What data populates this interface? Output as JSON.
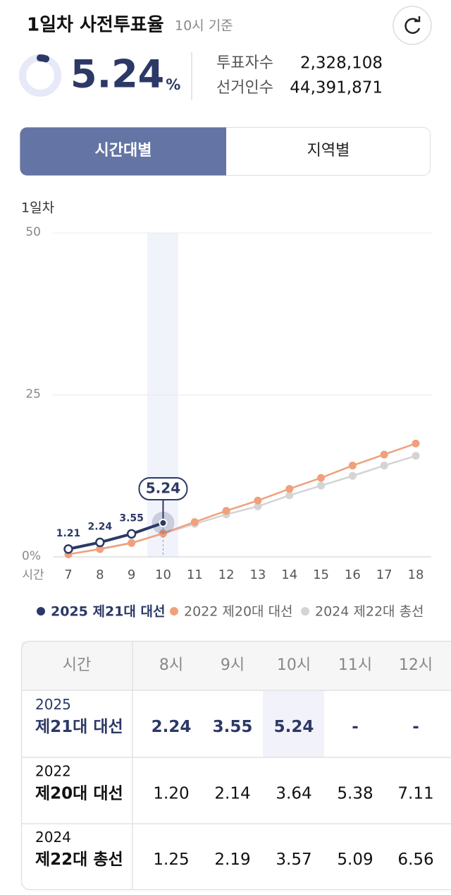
{
  "header": {
    "title": "1일차 사전투표율",
    "subtitle": "10시 기준"
  },
  "summary": {
    "rate": 5.24,
    "unit": "%",
    "stats": [
      {
        "label": "투표자수",
        "value": "2,328,108"
      },
      {
        "label": "선거인수",
        "value": "44,391,871"
      }
    ]
  },
  "tabs": [
    "시간대별",
    "지역별"
  ],
  "chart_data": {
    "type": "line",
    "title": "1일차",
    "x_label": "시간",
    "x": [
      7,
      8,
      9,
      10,
      11,
      12,
      13,
      14,
      15,
      16,
      17,
      18
    ],
    "xlim": [
      7,
      18
    ],
    "xticks": [
      7,
      8,
      9,
      10,
      11,
      12,
      13,
      14,
      15,
      16,
      17,
      18
    ],
    "ylim": [
      0,
      50
    ],
    "yticks": [
      {
        "value": 0,
        "label": "0%"
      },
      25,
      50
    ],
    "grid": true,
    "series": [
      {
        "name": "2025 제21대 대선",
        "color": "#2c3966",
        "values": [
          1.21,
          2.24,
          3.55,
          5.24,
          null,
          null,
          null,
          null,
          null,
          null,
          null,
          null
        ]
      },
      {
        "name": "2022 제20대 대선",
        "color": "#f0a07c",
        "values": [
          0.4,
          1.2,
          2.14,
          3.64,
          5.38,
          7.11,
          8.7,
          10.5,
          12.2,
          14.1,
          15.8,
          17.5
        ]
      },
      {
        "name": "2024 제22대 총선",
        "color": "#d4d4d4",
        "values": [
          0.4,
          1.25,
          2.19,
          3.57,
          5.09,
          6.56,
          7.8,
          9.5,
          11.0,
          12.5,
          14.1,
          15.6
        ]
      }
    ]
  },
  "table": {
    "columns": [
      "시간",
      "8시",
      "9시",
      "10시",
      "11시",
      "12시"
    ],
    "rows": [
      {
        "year": "2025",
        "name": "제21대 대선",
        "values": [
          "2.24",
          "3.55",
          "5.24",
          "-",
          "-"
        ]
      },
      {
        "year": "2022",
        "name": "제20대 대선",
        "values": [
          "1.20",
          "2.14",
          "3.64",
          "5.38",
          "7.11"
        ]
      },
      {
        "year": "2024",
        "name": "제22대 총선",
        "values": [
          "1.25",
          "2.19",
          "3.57",
          "5.09",
          "6.56"
        ]
      }
    ]
  }
}
